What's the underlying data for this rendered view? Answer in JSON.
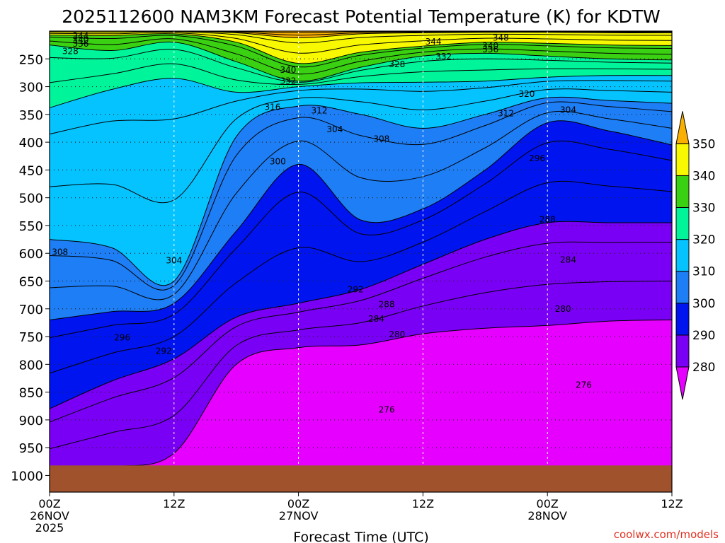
{
  "chart_data": {
    "type": "heatmap",
    "title": "2025112600 NAM3KM Forecast Potential Temperature (K) for KDTW",
    "xlabel": "Forecast Time (UTC)",
    "ylabel": "",
    "credit": "coolwx.com/models",
    "x_hours_range": [
      0,
      60
    ],
    "x_ticks": [
      {
        "hour": 0,
        "lines": [
          "00Z",
          "26NOV",
          "2025"
        ]
      },
      {
        "hour": 12,
        "lines": [
          "12Z"
        ]
      },
      {
        "hour": 24,
        "lines": [
          "00Z",
          "27NOV"
        ]
      },
      {
        "hour": 36,
        "lines": [
          "12Z"
        ]
      },
      {
        "hour": 48,
        "lines": [
          "00Z",
          "28NOV"
        ]
      },
      {
        "hour": 60,
        "lines": [
          "12Z"
        ]
      }
    ],
    "y_pressure_range": [
      1030,
      200
    ],
    "y_ticks": [
      250,
      300,
      350,
      400,
      450,
      500,
      550,
      600,
      650,
      700,
      750,
      800,
      850,
      900,
      950,
      1000
    ],
    "ground_top_hpa": 982,
    "colorbar": {
      "levels": [
        280,
        290,
        300,
        310,
        320,
        330,
        340,
        350
      ],
      "colors": [
        "#e600ff",
        "#7a00f5",
        "#0014f0",
        "#1e7ef5",
        "#05c3ff",
        "#00f59b",
        "#3ad113",
        "#f8f800",
        "#f9b000"
      ]
    },
    "ground_color": "#a0522d",
    "series": [
      {
        "name": "theta 280 K boundary",
        "hours": [
          0,
          6,
          12,
          18,
          24,
          30,
          36,
          42,
          48,
          54,
          60
        ],
        "hpa": [
          1000,
          985,
          960,
          800,
          770,
          765,
          745,
          735,
          730,
          722,
          720
        ]
      },
      {
        "name": "theta 290 K boundary",
        "hours": [
          0,
          6,
          12,
          18,
          24,
          30,
          36,
          42,
          48,
          54,
          60
        ],
        "hpa": [
          880,
          830,
          790,
          715,
          690,
          665,
          620,
          575,
          545,
          545,
          545
        ]
      },
      {
        "name": "theta 300 K boundary",
        "hours": [
          0,
          6,
          12,
          18,
          24,
          30,
          36,
          42,
          48,
          54,
          60
        ],
        "hpa": [
          720,
          705,
          690,
          560,
          440,
          540,
          520,
          450,
          365,
          380,
          405
        ]
      },
      {
        "name": "theta 310 K boundary",
        "hours": [
          0,
          6,
          12,
          18,
          24,
          30,
          36,
          42,
          48,
          54,
          60
        ],
        "hpa": [
          575,
          590,
          650,
          390,
          335,
          350,
          375,
          350,
          320,
          325,
          330
        ]
      },
      {
        "name": "theta 320 K boundary",
        "hours": [
          0,
          6,
          12,
          18,
          24,
          30,
          36,
          42,
          48,
          54,
          60
        ],
        "hpa": [
          338,
          305,
          285,
          310,
          300,
          293,
          292,
          290,
          283,
          280,
          280
        ]
      },
      {
        "name": "theta 330 K boundary",
        "hours": [
          0,
          6,
          12,
          18,
          24,
          30,
          36,
          42,
          48,
          54,
          60
        ],
        "hpa": [
          225,
          235,
          220,
          255,
          290,
          265,
          245,
          240,
          245,
          250,
          252
        ]
      },
      {
        "name": "theta 340 K boundary",
        "hours": [
          0,
          6,
          12,
          18,
          24,
          30,
          36,
          42,
          48,
          54,
          60
        ],
        "hpa": [
          207,
          208,
          205,
          220,
          258,
          238,
          227,
          220,
          222,
          225,
          226
        ]
      },
      {
        "name": "theta 350 K boundary",
        "hours": [
          0,
          6,
          12,
          18,
          24,
          30,
          36,
          42,
          48,
          54,
          60
        ],
        "hpa": [
          200,
          200,
          200,
          203,
          212,
          205,
          203,
          202,
          202,
          203,
          203
        ]
      }
    ],
    "contour_labels": [
      {
        "text": "344",
        "hour": 3.0,
        "hpa": 209
      },
      {
        "text": "340",
        "hour": 3.0,
        "hpa": 216
      },
      {
        "text": "336",
        "hour": 3.0,
        "hpa": 223
      },
      {
        "text": "328",
        "hour": 2.0,
        "hpa": 236
      },
      {
        "text": "348",
        "hour": 43.5,
        "hpa": 212
      },
      {
        "text": "344",
        "hour": 37.0,
        "hpa": 219
      },
      {
        "text": "340",
        "hour": 42.5,
        "hpa": 227
      },
      {
        "text": "336",
        "hour": 42.5,
        "hpa": 233
      },
      {
        "text": "332",
        "hour": 38.0,
        "hpa": 246
      },
      {
        "text": "328",
        "hour": 33.5,
        "hpa": 260
      },
      {
        "text": "340",
        "hour": 23.0,
        "hpa": 270
      },
      {
        "text": "332",
        "hour": 23.0,
        "hpa": 290
      },
      {
        "text": "320",
        "hour": 46.0,
        "hpa": 313
      },
      {
        "text": "316",
        "hour": 21.5,
        "hpa": 337
      },
      {
        "text": "312",
        "hour": 26.0,
        "hpa": 343
      },
      {
        "text": "312",
        "hour": 44.0,
        "hpa": 348
      },
      {
        "text": "304",
        "hour": 50.0,
        "hpa": 342
      },
      {
        "text": "304",
        "hour": 27.5,
        "hpa": 377
      },
      {
        "text": "308",
        "hour": 32.0,
        "hpa": 394
      },
      {
        "text": "300",
        "hour": 22.0,
        "hpa": 435
      },
      {
        "text": "296",
        "hour": 47.0,
        "hpa": 429
      },
      {
        "text": "288",
        "hour": 48.0,
        "hpa": 539
      },
      {
        "text": "308",
        "hour": 1.0,
        "hpa": 598
      },
      {
        "text": "284",
        "hour": 50.0,
        "hpa": 612
      },
      {
        "text": "304",
        "hour": 12.0,
        "hpa": 613
      },
      {
        "text": "292",
        "hour": 29.5,
        "hpa": 665
      },
      {
        "text": "288",
        "hour": 32.5,
        "hpa": 692
      },
      {
        "text": "284",
        "hour": 31.5,
        "hpa": 718
      },
      {
        "text": "280",
        "hour": 49.5,
        "hpa": 700
      },
      {
        "text": "280",
        "hour": 33.5,
        "hpa": 746
      },
      {
        "text": "296",
        "hour": 7.0,
        "hpa": 752
      },
      {
        "text": "292",
        "hour": 11.0,
        "hpa": 776
      },
      {
        "text": "276",
        "hour": 51.5,
        "hpa": 837
      },
      {
        "text": "276",
        "hour": 32.5,
        "hpa": 882
      }
    ]
  }
}
